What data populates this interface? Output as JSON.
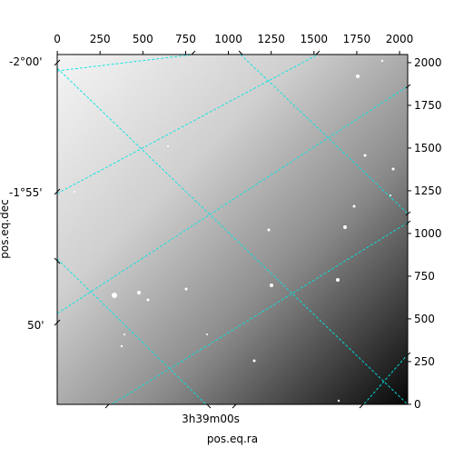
{
  "chart_data": {
    "type": "image",
    "xlabel": "pos.eq.ra",
    "ylabel": "pos.eq.dec",
    "xlim": [
      -0.5,
      2047.5
    ],
    "ylim": [
      -0.5,
      2047.5
    ],
    "xticks": [
      0,
      250,
      500,
      750,
      1000,
      1250,
      1500,
      1750,
      2000
    ],
    "yticks": [
      0,
      250,
      500,
      750,
      1000,
      1250,
      1500,
      1750,
      2000
    ],
    "dec_labels": [
      "-2°00'",
      "-1°55'",
      "50'"
    ],
    "ra_label": "3h39m00s",
    "grid_color": "#00e5e5"
  }
}
